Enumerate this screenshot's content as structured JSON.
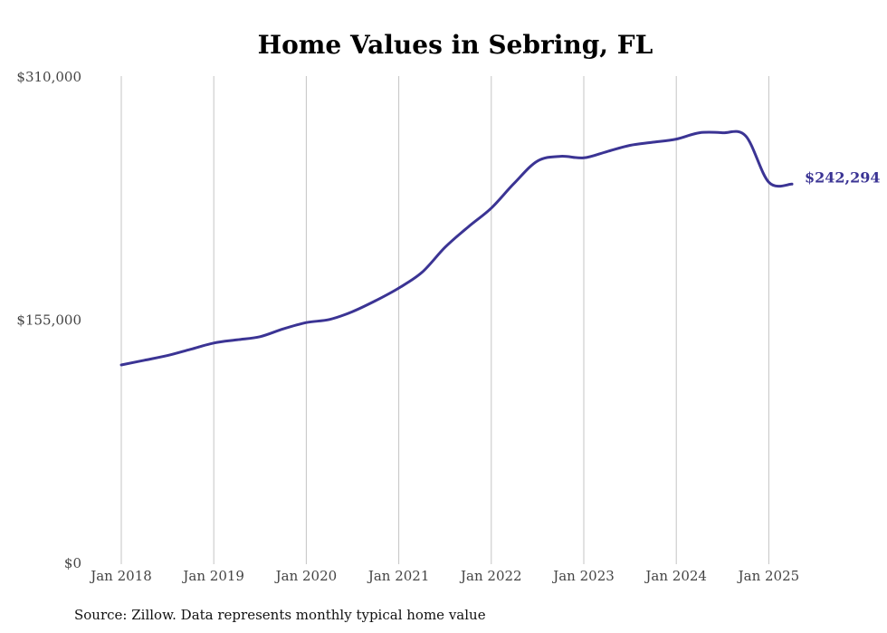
{
  "chart_data": {
    "type": "line",
    "title": "Home Values in Sebring, FL",
    "source": "Source: Zillow. Data represents monthly typical home value",
    "ylim": [
      0,
      310000
    ],
    "ytick_values": [
      0,
      155000,
      310000
    ],
    "ytick_labels": [
      "$0",
      "$155,000",
      "$310,000"
    ],
    "xlim": [
      "2018-01",
      "2025-04"
    ],
    "xtick_values": [
      "2018-01",
      "2019-01",
      "2020-01",
      "2021-01",
      "2022-01",
      "2023-01",
      "2024-01",
      "2025-01"
    ],
    "xtick_labels": [
      "Jan 2018",
      "Jan 2019",
      "Jan 2020",
      "Jan 2021",
      "Jan 2022",
      "Jan 2023",
      "Jan 2024",
      "Jan 2025"
    ],
    "grid": "vertical",
    "end_label": "$242,294",
    "colors": {
      "line": "#3b3494",
      "grid": "#c4c4c4"
    },
    "series": [
      {
        "x": [
          "2018-01",
          "2018-04",
          "2018-07",
          "2018-10",
          "2019-01",
          "2019-04",
          "2019-07",
          "2019-10",
          "2020-01",
          "2020-04",
          "2020-07",
          "2020-10",
          "2021-01",
          "2021-04",
          "2021-07",
          "2021-10",
          "2022-01",
          "2022-04",
          "2022-07",
          "2022-10",
          "2023-01",
          "2023-04",
          "2023-07",
          "2023-10",
          "2024-01",
          "2024-04",
          "2024-07",
          "2024-10",
          "2025-01",
          "2025-04"
        ],
        "values": [
          127000,
          130000,
          133000,
          137000,
          141000,
          143000,
          145000,
          150000,
          154000,
          156000,
          161000,
          168000,
          176000,
          186000,
          202000,
          215000,
          227000,
          243000,
          257000,
          260000,
          259000,
          263000,
          267000,
          269000,
          271000,
          275000,
          275000,
          273000,
          243500,
          242294
        ]
      }
    ]
  }
}
